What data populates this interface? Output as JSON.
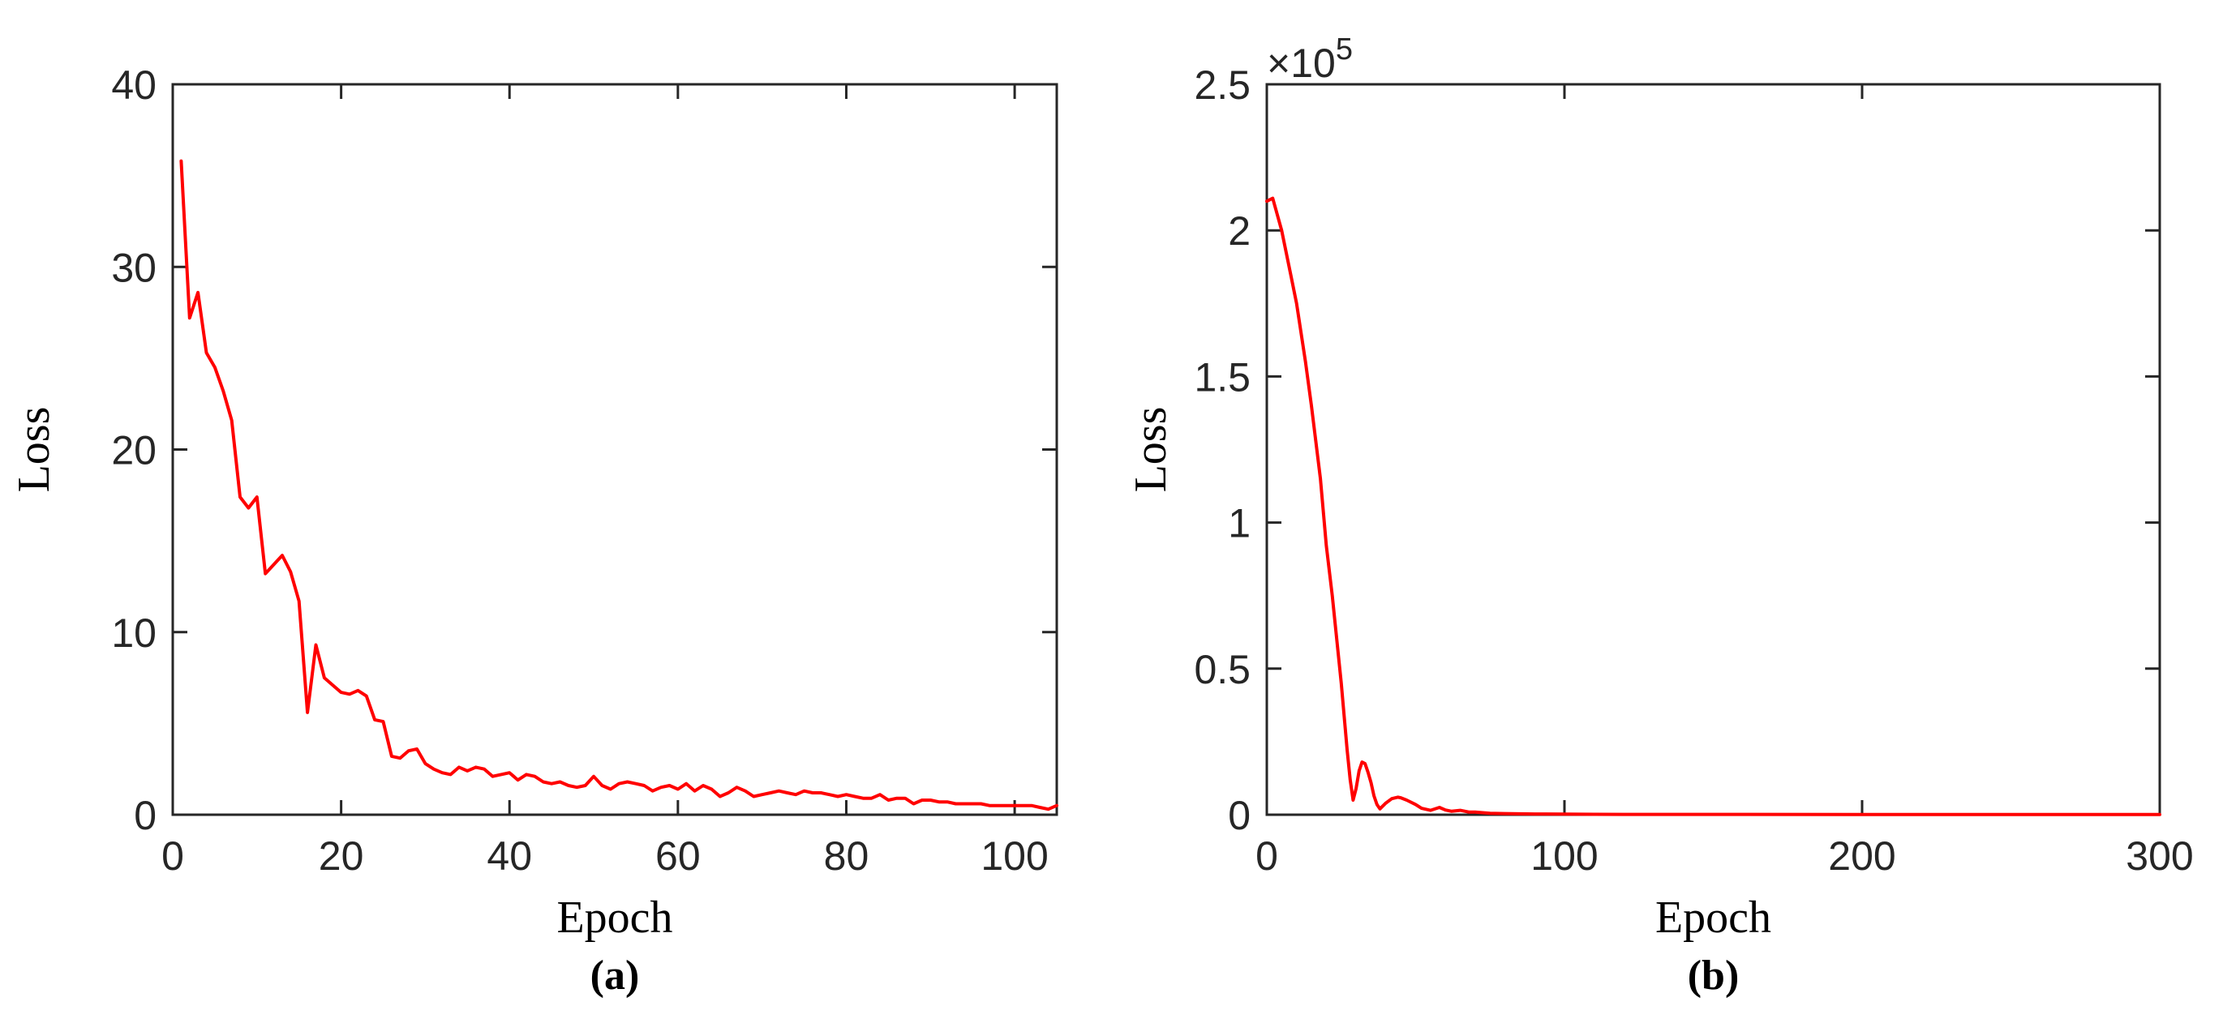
{
  "chart_data": [
    {
      "type": "line",
      "caption": "(a)",
      "xlabel": "Epoch",
      "ylabel": "Loss",
      "xlim": [
        0,
        105
      ],
      "ylim": [
        0,
        40
      ],
      "xticks": [
        "0",
        "20",
        "40",
        "60",
        "80",
        "100"
      ],
      "xtick_values": [
        0,
        20,
        40,
        60,
        80,
        100
      ],
      "yticks": [
        "0",
        "10",
        "20",
        "30",
        "40"
      ],
      "ytick_values": [
        0,
        10,
        20,
        30,
        40
      ],
      "grid": false,
      "color": "#ff0000",
      "series": [
        {
          "x": [
            1,
            2,
            3,
            4,
            5,
            6,
            7,
            8,
            9,
            10,
            11,
            12,
            13,
            14,
            15,
            16,
            17,
            18,
            19,
            20,
            21,
            22,
            23,
            24,
            25,
            26,
            27,
            28,
            29,
            30,
            31,
            32,
            33,
            34,
            35,
            36,
            37,
            38,
            39,
            40,
            41,
            42,
            43,
            44,
            45,
            46,
            47,
            48,
            49,
            50,
            51,
            52,
            53,
            54,
            55,
            56,
            57,
            58,
            59,
            60,
            61,
            62,
            63,
            64,
            65,
            66,
            67,
            68,
            69,
            70,
            71,
            72,
            73,
            74,
            75,
            76,
            77,
            78,
            79,
            80,
            81,
            82,
            83,
            84,
            85,
            86,
            87,
            88,
            89,
            90,
            91,
            92,
            93,
            94,
            95,
            96,
            97,
            98,
            99,
            100,
            101,
            102,
            103,
            104,
            105
          ],
          "y": [
            35.8,
            27.2,
            28.6,
            25.3,
            24.5,
            23.2,
            21.6,
            17.4,
            16.8,
            17.4,
            13.2,
            13.7,
            14.2,
            13.3,
            11.7,
            5.6,
            9.3,
            7.5,
            7.1,
            6.7,
            6.6,
            6.8,
            6.5,
            5.2,
            5.1,
            3.2,
            3.1,
            3.5,
            3.6,
            2.8,
            2.5,
            2.3,
            2.2,
            2.6,
            2.4,
            2.6,
            2.5,
            2.1,
            2.2,
            2.3,
            1.9,
            2.2,
            2.1,
            1.8,
            1.7,
            1.8,
            1.6,
            1.5,
            1.6,
            2.1,
            1.6,
            1.4,
            1.7,
            1.8,
            1.7,
            1.6,
            1.3,
            1.5,
            1.6,
            1.4,
            1.7,
            1.3,
            1.6,
            1.4,
            1.0,
            1.2,
            1.5,
            1.3,
            1.0,
            1.1,
            1.2,
            1.3,
            1.2,
            1.1,
            1.3,
            1.2,
            1.2,
            1.1,
            1.0,
            1.1,
            1.0,
            0.9,
            0.9,
            1.1,
            0.8,
            0.9,
            0.9,
            0.6,
            0.8,
            0.8,
            0.7,
            0.7,
            0.6,
            0.6,
            0.6,
            0.6,
            0.5,
            0.5,
            0.5,
            0.5,
            0.5,
            0.5,
            0.4,
            0.3,
            0.5
          ]
        }
      ]
    },
    {
      "type": "line",
      "caption": "(b)",
      "xlabel": "Epoch",
      "ylabel": "Loss",
      "exponent_label": "×10",
      "exponent_power": "5",
      "xlim": [
        0,
        300
      ],
      "ylim": [
        0,
        250000
      ],
      "xticks": [
        "0",
        "100",
        "200",
        "300"
      ],
      "xtick_values": [
        0,
        100,
        200,
        300
      ],
      "yticks": [
        "0",
        "0.5",
        "1",
        "1.5",
        "2",
        "2.5"
      ],
      "ytick_values": [
        0,
        50000,
        100000,
        150000,
        200000,
        250000
      ],
      "grid": false,
      "color": "#ff0000",
      "series": [
        {
          "x": [
            0,
            2,
            5,
            8,
            10,
            13,
            15,
            18,
            20,
            22,
            25,
            27,
            28,
            29,
            30,
            31,
            32,
            33,
            34,
            35,
            36,
            37,
            38,
            39,
            40,
            42,
            44,
            45,
            47,
            50,
            52,
            55,
            58,
            60,
            62,
            65,
            68,
            70,
            75,
            80,
            85,
            90,
            100,
            110,
            120,
            150,
            200,
            250,
            300
          ],
          "y": [
            210000,
            211000,
            200000,
            185000,
            175000,
            155000,
            140000,
            115000,
            92000,
            75000,
            45000,
            22000,
            12000,
            5000,
            9000,
            15000,
            18000,
            17500,
            14500,
            11000,
            6500,
            3500,
            2000,
            3000,
            4000,
            5500,
            6000,
            5800,
            5000,
            3500,
            2200,
            1500,
            2500,
            1600,
            1200,
            1500,
            900,
            900,
            500,
            400,
            300,
            250,
            200,
            150,
            120,
            100,
            80,
            60,
            50
          ]
        }
      ]
    }
  ]
}
